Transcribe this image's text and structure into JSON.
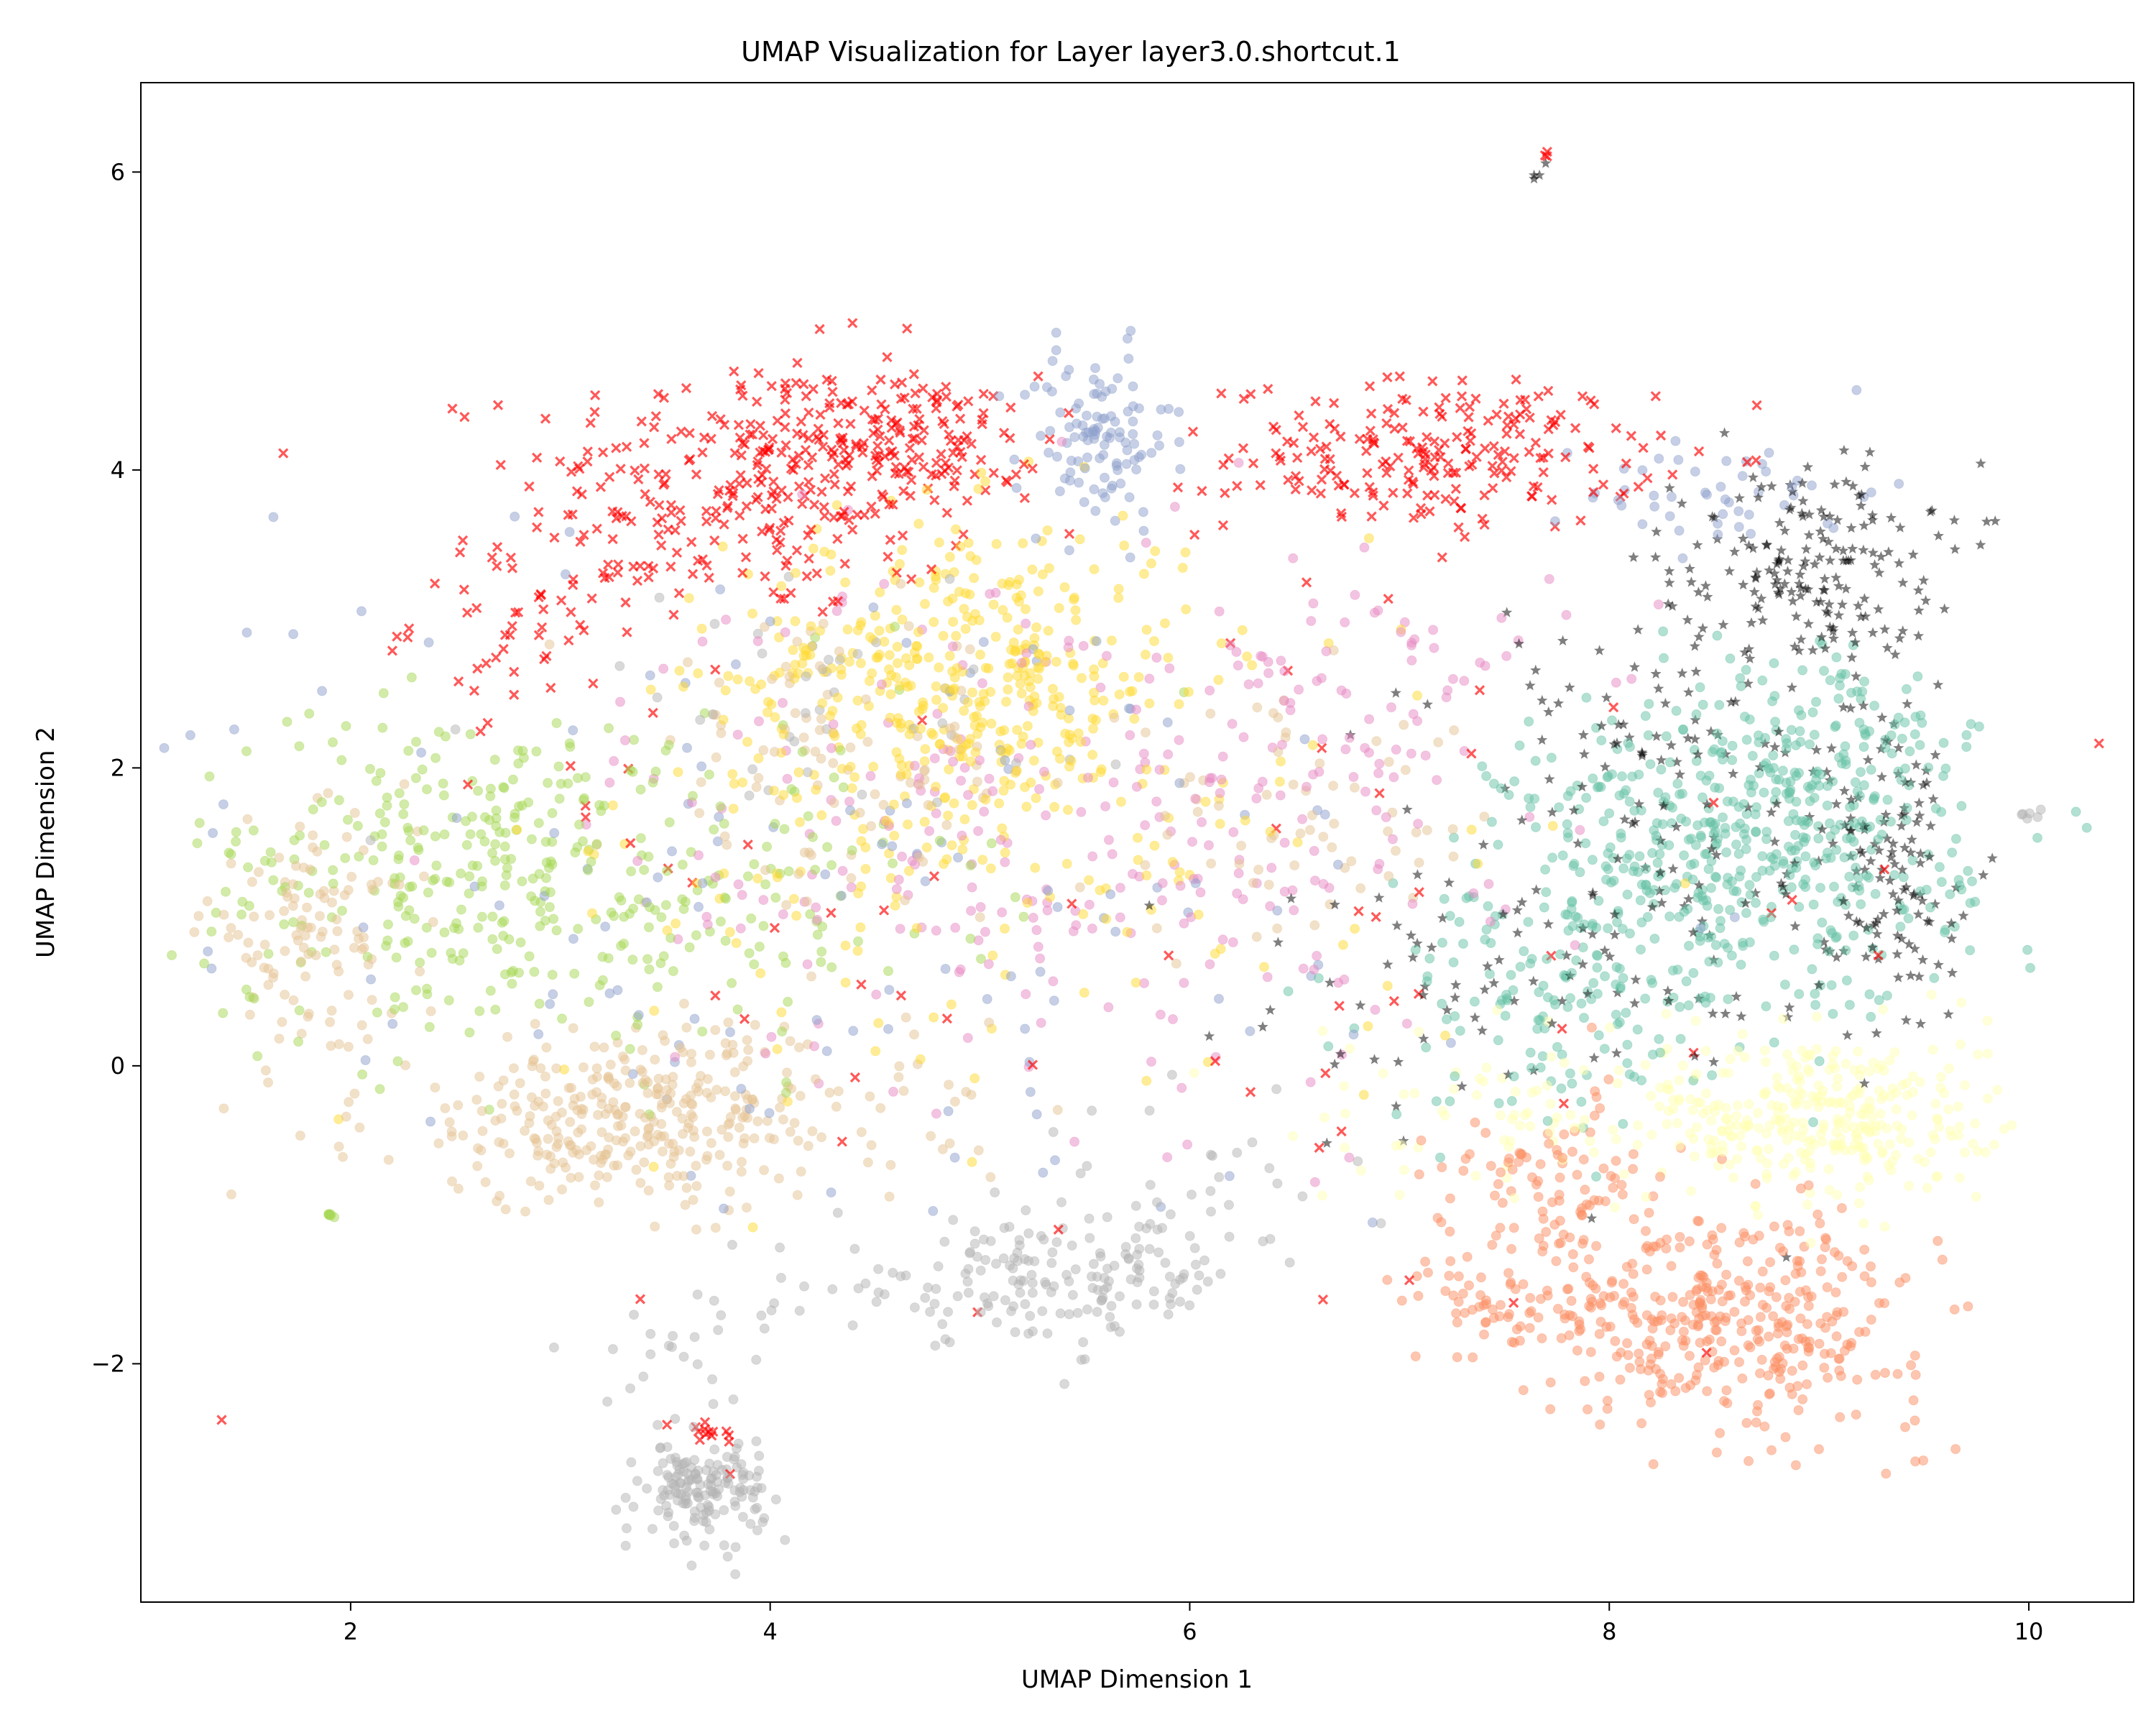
{
  "chart_data": {
    "type": "scatter",
    "title": "UMAP Visualization for Layer layer3.0.shortcut.1",
    "xlabel": "UMAP Dimension 1",
    "ylabel": "UMAP Dimension 2",
    "xlim": [
      1.0,
      10.5
    ],
    "ylim": [
      -3.6,
      6.6
    ],
    "x_ticks": [
      2,
      4,
      6,
      8,
      10
    ],
    "x_tick_labels": [
      "2",
      "4",
      "6",
      "8",
      "10"
    ],
    "y_ticks": [
      -2,
      0,
      2,
      4,
      6
    ],
    "y_tick_labels": [
      "−2",
      "0",
      "2",
      "4",
      "6"
    ],
    "grid": false,
    "legend": "none",
    "point_alpha": 0.5,
    "series": [
      {
        "color": "#ff0000",
        "marker": "x",
        "clusters": [
          {
            "cx": 3.9,
            "cy": 3.9,
            "sx": 0.55,
            "sy": 0.45,
            "n": 260
          },
          {
            "cx": 4.6,
            "cy": 4.2,
            "sx": 0.35,
            "sy": 0.22,
            "n": 140
          },
          {
            "cx": 2.9,
            "cy": 3.0,
            "sx": 0.3,
            "sy": 0.3,
            "n": 60
          },
          {
            "cx": 7.2,
            "cy": 4.1,
            "sx": 0.5,
            "sy": 0.25,
            "n": 220
          },
          {
            "cx": 3.7,
            "cy": -2.5,
            "sx": 0.08,
            "sy": 0.08,
            "n": 14
          },
          {
            "cx": 5.8,
            "cy": 1.0,
            "sx": 2.5,
            "sy": 1.6,
            "n": 70
          },
          {
            "cx": 7.7,
            "cy": 6.12,
            "sx": 0.01,
            "sy": 0.01,
            "n": 3
          }
        ]
      },
      {
        "color": "#8da0cb",
        "marker": "o",
        "clusters": [
          {
            "cx": 5.55,
            "cy": 4.2,
            "sx": 0.18,
            "sy": 0.3,
            "n": 110
          },
          {
            "cx": 8.6,
            "cy": 3.85,
            "sx": 0.35,
            "sy": 0.2,
            "n": 50
          },
          {
            "cx": 4.0,
            "cy": 1.2,
            "sx": 2.0,
            "sy": 1.2,
            "n": 150
          }
        ]
      },
      {
        "color": "#ffd92f",
        "marker": "o",
        "clusters": [
          {
            "cx": 4.9,
            "cy": 2.6,
            "sx": 0.55,
            "sy": 0.55,
            "n": 420
          },
          {
            "cx": 5.2,
            "cy": 1.3,
            "sx": 1.1,
            "sy": 0.9,
            "n": 130
          }
        ]
      },
      {
        "color": "#e78ac3",
        "marker": "o",
        "clusters": [
          {
            "cx": 5.3,
            "cy": 1.6,
            "sx": 1.0,
            "sy": 0.9,
            "n": 260
          },
          {
            "cx": 6.8,
            "cy": 2.4,
            "sx": 0.5,
            "sy": 0.6,
            "n": 80
          }
        ]
      },
      {
        "color": "#a6d854",
        "marker": "o",
        "clusters": [
          {
            "cx": 2.6,
            "cy": 1.3,
            "sx": 0.7,
            "sy": 0.55,
            "n": 320
          },
          {
            "cx": 3.8,
            "cy": 1.2,
            "sx": 0.6,
            "sy": 0.6,
            "n": 90
          },
          {
            "cx": 1.9,
            "cy": -1.0,
            "sx": 0.02,
            "sy": 0.01,
            "n": 6
          }
        ]
      },
      {
        "color": "#e5c494",
        "marker": "o",
        "clusters": [
          {
            "cx": 3.4,
            "cy": -0.35,
            "sx": 0.65,
            "sy": 0.3,
            "n": 360
          },
          {
            "cx": 1.8,
            "cy": 0.9,
            "sx": 0.25,
            "sy": 0.35,
            "n": 110
          },
          {
            "cx": 4.3,
            "cy": 2.0,
            "sx": 0.45,
            "sy": 0.5,
            "n": 90
          },
          {
            "cx": 6.5,
            "cy": 1.6,
            "sx": 0.5,
            "sy": 0.4,
            "n": 70
          }
        ]
      },
      {
        "color": "#b3b3b3",
        "marker": "o",
        "clusters": [
          {
            "cx": 5.3,
            "cy": -1.45,
            "sx": 0.5,
            "sy": 0.2,
            "n": 170
          },
          {
            "cx": 6.0,
            "cy": -0.9,
            "sx": 0.35,
            "sy": 0.3,
            "n": 40
          },
          {
            "cx": 3.68,
            "cy": -2.85,
            "sx": 0.15,
            "sy": 0.16,
            "n": 150
          },
          {
            "cx": 3.6,
            "cy": -2.0,
            "sx": 0.25,
            "sy": 0.3,
            "n": 30
          },
          {
            "cx": 10.0,
            "cy": 1.7,
            "sx": 0.04,
            "sy": 0.02,
            "n": 6
          },
          {
            "cx": 4.0,
            "cy": 2.5,
            "sx": 0.8,
            "sy": 0.4,
            "n": 40
          }
        ]
      },
      {
        "color": "#66c2a5",
        "marker": "o",
        "clusters": [
          {
            "cx": 8.6,
            "cy": 1.4,
            "sx": 0.55,
            "sy": 0.55,
            "n": 480
          },
          {
            "cx": 7.7,
            "cy": 0.4,
            "sx": 0.4,
            "sy": 0.4,
            "n": 120
          },
          {
            "cx": 9.1,
            "cy": 2.0,
            "sx": 0.25,
            "sy": 0.45,
            "n": 110
          }
        ]
      },
      {
        "color": "#fc8d62",
        "marker": "o",
        "clusters": [
          {
            "cx": 8.6,
            "cy": -1.7,
            "sx": 0.45,
            "sy": 0.35,
            "n": 360
          },
          {
            "cx": 7.7,
            "cy": -0.9,
            "sx": 0.3,
            "sy": 0.35,
            "n": 110
          },
          {
            "cx": 7.6,
            "cy": -1.6,
            "sx": 0.3,
            "sy": 0.15,
            "n": 60
          }
        ]
      },
      {
        "color": "#ffffb3",
        "marker": "o",
        "clusters": [
          {
            "cx": 9.0,
            "cy": -0.35,
            "sx": 0.4,
            "sy": 0.3,
            "n": 330
          },
          {
            "cx": 7.5,
            "cy": -0.3,
            "sx": 0.6,
            "sy": 0.3,
            "n": 70
          }
        ]
      },
      {
        "color": "#000000",
        "marker": "*",
        "clusters": [
          {
            "cx": 8.95,
            "cy": 3.4,
            "sx": 0.3,
            "sy": 0.35,
            "n": 170
          },
          {
            "cx": 9.35,
            "cy": 1.4,
            "sx": 0.18,
            "sy": 0.5,
            "n": 110
          },
          {
            "cx": 8.3,
            "cy": 1.8,
            "sx": 0.55,
            "sy": 0.9,
            "n": 160
          },
          {
            "cx": 7.3,
            "cy": 0.6,
            "sx": 0.6,
            "sy": 0.4,
            "n": 60
          },
          {
            "cx": 7.65,
            "cy": 5.98,
            "sx": 0.03,
            "sy": 0.05,
            "n": 4
          }
        ]
      }
    ]
  }
}
